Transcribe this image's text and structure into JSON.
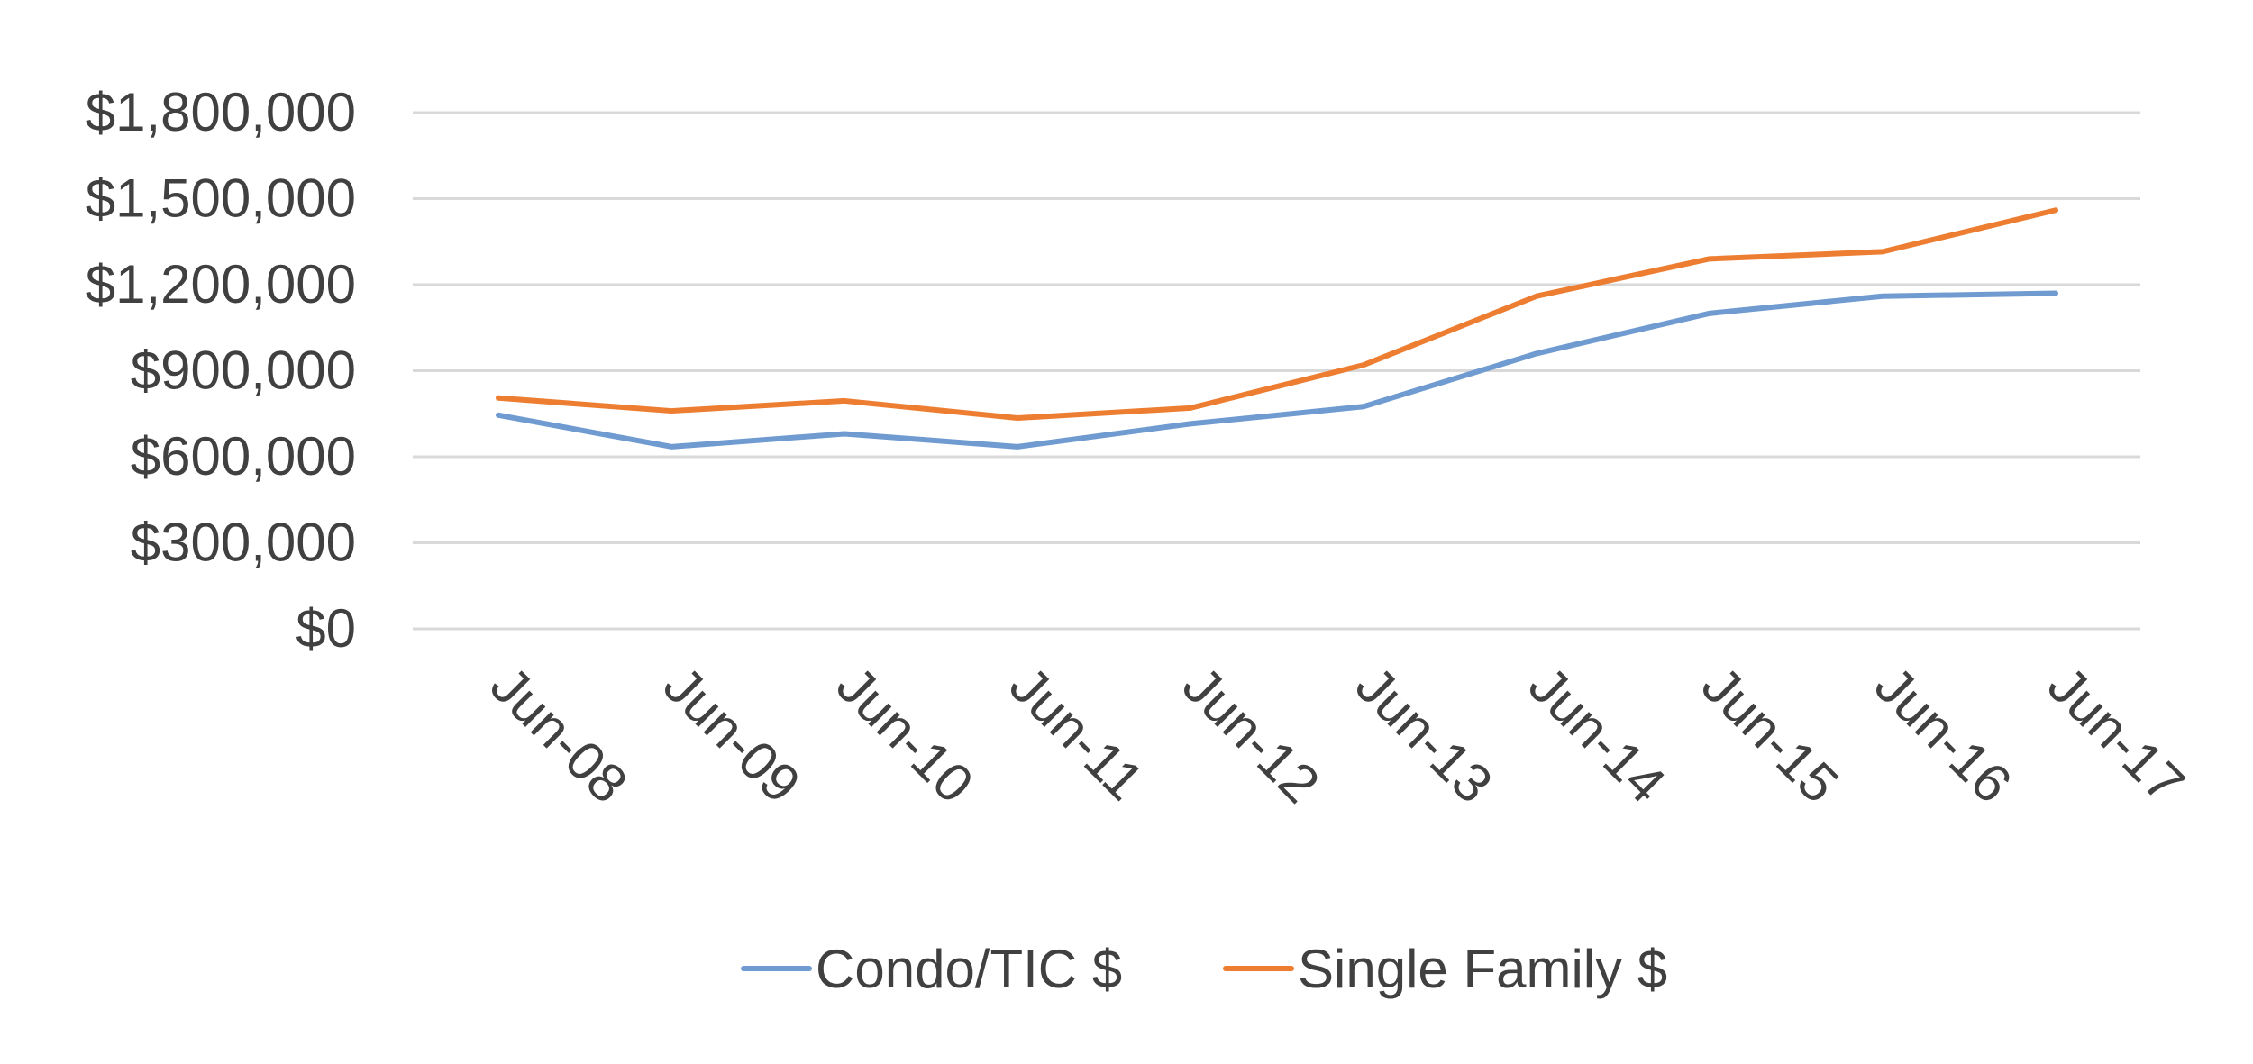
{
  "chart_data": {
    "type": "line",
    "title": "",
    "xlabel": "",
    "ylabel": "",
    "categories": [
      "Jun-08",
      "Jun-09",
      "Jun-10",
      "Jun-11",
      "Jun-12",
      "Jun-13",
      "Jun-14",
      "Jun-15",
      "Jun-16",
      "Jun-17"
    ],
    "series": [
      {
        "name": "Condo/TIC $",
        "color": "#6F9BD1",
        "values": [
          745000,
          635000,
          680000,
          635000,
          715000,
          775000,
          960000,
          1100000,
          1160000,
          1170000
        ]
      },
      {
        "name": "Single Family $",
        "color": "#ED7D31",
        "values": [
          805000,
          760000,
          795000,
          735000,
          770000,
          920000,
          1160000,
          1290000,
          1315000,
          1460000
        ]
      }
    ],
    "ylim": [
      0,
      1800000
    ],
    "yticks": [
      0,
      300000,
      600000,
      900000,
      1200000,
      1500000,
      1800000
    ],
    "ytick_labels": [
      "$0",
      "$300,000",
      "$600,000",
      "$900,000",
      "$1,200,000",
      "$1,500,000",
      "$1,800,000"
    ],
    "grid": true,
    "grid_color": "#D9D9D9",
    "text_color": "#404040",
    "legend_position": "bottom"
  }
}
